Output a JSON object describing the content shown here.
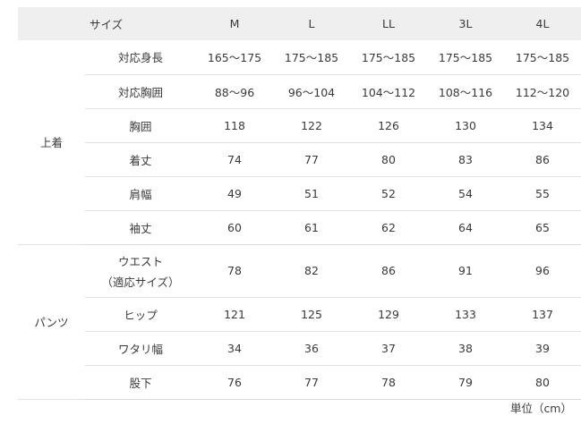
{
  "header": {
    "label": "サイズ",
    "sizes": [
      "M",
      "L",
      "LL",
      "3L",
      "4L"
    ]
  },
  "groups": [
    {
      "category": "上着",
      "rows": [
        {
          "label": "対応身長",
          "values": [
            "165〜175",
            "175〜185",
            "175〜185",
            "175〜185",
            "175〜185"
          ]
        },
        {
          "label": "対応胸囲",
          "values": [
            "88〜96",
            "96〜104",
            "104〜112",
            "108〜116",
            "112〜120"
          ]
        },
        {
          "label": "胸囲",
          "values": [
            "118",
            "122",
            "126",
            "130",
            "134"
          ]
        },
        {
          "label": "着丈",
          "values": [
            "74",
            "77",
            "80",
            "83",
            "86"
          ]
        },
        {
          "label": "肩幅",
          "values": [
            "49",
            "51",
            "52",
            "54",
            "55"
          ]
        },
        {
          "label": "袖丈",
          "values": [
            "60",
            "61",
            "62",
            "64",
            "65"
          ]
        }
      ]
    },
    {
      "category": "パンツ",
      "rows": [
        {
          "label": "ウエスト",
          "label2": "（適応サイズ）",
          "values": [
            "78",
            "82",
            "86",
            "91",
            "96"
          ]
        },
        {
          "label": "ヒップ",
          "values": [
            "121",
            "125",
            "129",
            "133",
            "137"
          ]
        },
        {
          "label": "ワタリ幅",
          "values": [
            "34",
            "36",
            "37",
            "38",
            "39"
          ]
        },
        {
          "label": "股下",
          "values": [
            "76",
            "77",
            "78",
            "79",
            "80"
          ]
        }
      ]
    }
  ],
  "unit": "単位（cm）"
}
